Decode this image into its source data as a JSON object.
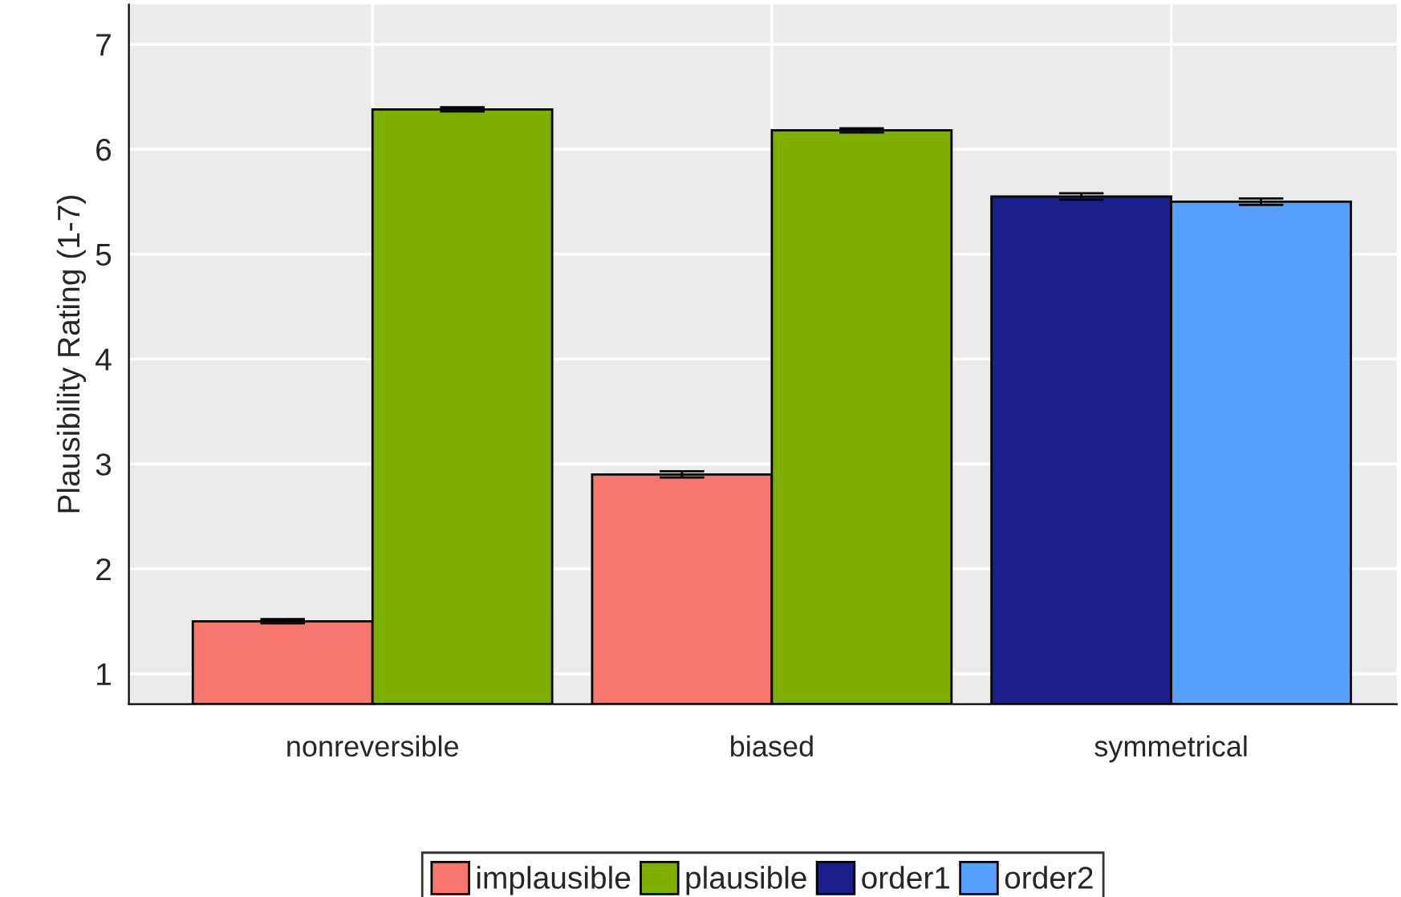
{
  "chart_data": {
    "type": "bar",
    "ylabel": "Plausibility Rating (1-7)",
    "categories": [
      "nonreversible",
      "biased",
      "symmetrical"
    ],
    "series": [
      {
        "name": "implausible",
        "color": "#f8766d",
        "values": [
          1.5,
          2.9,
          null
        ],
        "errors": [
          0.02,
          0.03,
          null
        ]
      },
      {
        "name": "plausible",
        "color": "#7cae00",
        "values": [
          6.38,
          6.18,
          null
        ],
        "errors": [
          0.02,
          0.02,
          null
        ]
      },
      {
        "name": "order1",
        "color": "#1a1f8a",
        "values": [
          null,
          null,
          5.55
        ],
        "errors": [
          null,
          null,
          0.03
        ]
      },
      {
        "name": "order2",
        "color": "#56a0ff",
        "values": [
          null,
          null,
          5.5
        ],
        "errors": [
          null,
          null,
          0.03
        ]
      }
    ],
    "ylim": [
      0.71,
      7.38
    ],
    "yticks": [
      1,
      2,
      3,
      4,
      5,
      6,
      7
    ],
    "grid": true,
    "legend": "bottom"
  }
}
